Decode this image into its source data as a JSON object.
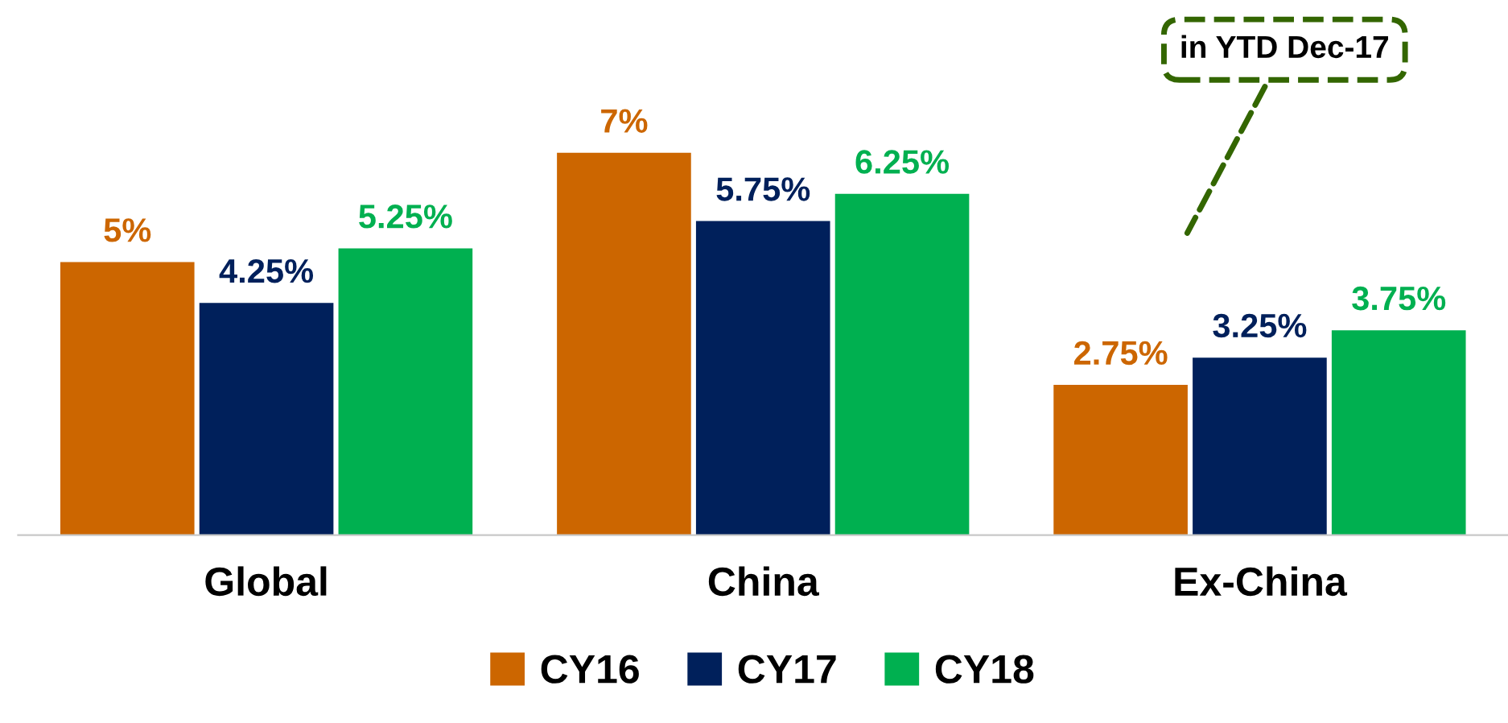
{
  "chart_data": {
    "type": "bar",
    "categories": [
      "Global",
      "China",
      "Ex-China"
    ],
    "series": [
      {
        "name": "CY16",
        "color": "#cc6600",
        "values": [
          5,
          7,
          2.75
        ],
        "value_labels": [
          "5%",
          "7%",
          "2.75%"
        ]
      },
      {
        "name": "CY17",
        "color": "#00205b",
        "values": [
          4.25,
          5.75,
          3.25
        ],
        "value_labels": [
          "4.25%",
          "5.75%",
          "3.25%"
        ]
      },
      {
        "name": "CY18",
        "color": "#00b050",
        "values": [
          5.25,
          6.25,
          3.75
        ],
        "value_labels": [
          "5.25%",
          "6.25%",
          "3.75%"
        ]
      }
    ],
    "annotations": [
      "in YTD Dec-17"
    ],
    "legend": "bottom",
    "grid": false
  }
}
